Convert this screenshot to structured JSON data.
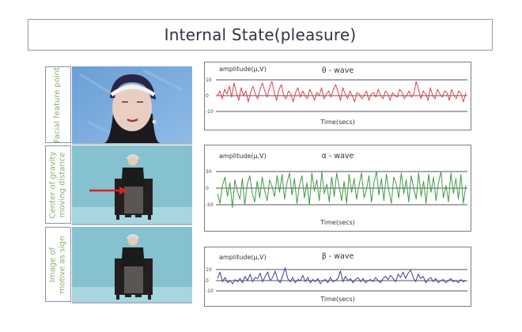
{
  "title": "Internal State(pleasure)",
  "rows": [
    {
      "label": "Facial feature point",
      "photo": "close-up face with headband"
    },
    {
      "label_line1": "Center of gravity",
      "label_line2": "moving distance",
      "photo": "seated person with red arrow"
    },
    {
      "label_line1": "Image of",
      "label_line2": "motive as sign",
      "photo": "seated person"
    }
  ],
  "colors": {
    "theta": "#e0404a",
    "alpha": "#3f9a45",
    "beta": "#3a3f9a",
    "label_text": "#8fae6e"
  },
  "chart_data": [
    {
      "type": "line",
      "title": "θ - wave",
      "ylabel": "amplitude(μ,V)",
      "xlabel": "Time(secs)",
      "yticks": [
        "10",
        "0",
        "-10"
      ],
      "ylim": [
        -10,
        10
      ],
      "grid": "horizontal",
      "series": [
        {
          "name": "theta",
          "color": "#e0404a",
          "values": [
            0,
            3,
            -2,
            4,
            1,
            6,
            -1,
            8,
            2,
            -3,
            5,
            0,
            3,
            -4,
            2,
            6,
            1,
            -2,
            4,
            8,
            3,
            -1,
            5,
            9,
            2,
            -3,
            4,
            7,
            0,
            -2,
            3,
            1,
            -4,
            2,
            5,
            -1,
            3,
            0,
            -2,
            4,
            1,
            -3,
            2,
            0,
            5,
            -2,
            1,
            3,
            -1,
            4,
            7,
            2,
            -3,
            5,
            1,
            -2,
            3,
            0,
            -4,
            2,
            1,
            -2,
            0,
            3,
            -3,
            1,
            2,
            -1,
            4,
            0,
            -2,
            3,
            1,
            -3,
            2,
            0,
            -1,
            4,
            2,
            -2,
            0,
            3,
            -1,
            1,
            9,
            4,
            -2,
            3,
            1,
            -3,
            5,
            0,
            -2,
            4,
            1,
            -1,
            3,
            2,
            -3,
            4,
            0,
            -2,
            3,
            1,
            -4,
            2
          ]
        }
      ]
    },
    {
      "type": "line",
      "title": "α - wave",
      "ylabel": "amplitude(μ,V)",
      "xlabel": "Time(secs)",
      "yticks": [
        "50",
        "0",
        "-50"
      ],
      "ylim": [
        -60,
        60
      ],
      "grid": "horizontal",
      "series": [
        {
          "name": "alpha",
          "color": "#3f9a45",
          "values": [
            -20,
            -55,
            10,
            40,
            -30,
            20,
            -70,
            30,
            -10,
            -40,
            35,
            -60,
            15,
            45,
            -20,
            -50,
            25,
            -35,
            40,
            -10,
            -45,
            30,
            5,
            -30,
            45,
            -15,
            50,
            -40,
            20,
            55,
            -25,
            35,
            -55,
            10,
            45,
            -35,
            20,
            -60,
            55,
            -10,
            30,
            -45,
            60,
            -20,
            15,
            -50,
            40,
            -30,
            55,
            5,
            -45,
            25,
            -55,
            50,
            -15,
            35,
            -40,
            10,
            55,
            -35,
            -5,
            45,
            -50,
            20,
            60,
            -25,
            35,
            -45,
            50,
            -10,
            -55,
            40,
            15,
            -35,
            55,
            -20,
            30,
            -50,
            45,
            0,
            -40,
            55,
            -30,
            25,
            -55,
            50,
            -15,
            40,
            -45,
            20,
            60,
            -35,
            10,
            -50,
            55,
            -20,
            35,
            -40,
            50,
            -55,
            10
          ]
        }
      ]
    },
    {
      "type": "line",
      "title": "β - wave",
      "ylabel": "amplitude(μ,V)",
      "xlabel": "Time(secs)",
      "yticks": [
        "10",
        "0",
        "-10"
      ],
      "ylim": [
        -10,
        10
      ],
      "grid": "horizontal",
      "series": [
        {
          "name": "beta",
          "color": "#3a3f9a",
          "values": [
            2,
            8,
            -1,
            3,
            -2,
            0,
            -3,
            1,
            -1,
            2,
            -2,
            4,
            0,
            6,
            -1,
            3,
            2,
            7,
            -1,
            4,
            8,
            0,
            3,
            9,
            1,
            -2,
            5,
            12,
            2,
            -1,
            3,
            -2,
            1,
            0,
            5,
            -1,
            3,
            -2,
            1,
            -1,
            2,
            -3,
            0,
            1,
            -2,
            3,
            -1,
            0,
            2,
            9,
            -1,
            4,
            0,
            2,
            -2,
            1,
            3,
            -1,
            2,
            -2,
            0,
            1,
            -1,
            3,
            0,
            -2,
            2,
            4,
            1,
            5,
            2,
            -1,
            6,
            3,
            8,
            2,
            7,
            10,
            3,
            -1,
            6,
            2,
            4,
            -2,
            1,
            3,
            -1,
            2,
            -2,
            0,
            1,
            -2,
            0,
            2,
            -1,
            0,
            -2,
            1,
            -1,
            0
          ]
        }
      ]
    }
  ]
}
